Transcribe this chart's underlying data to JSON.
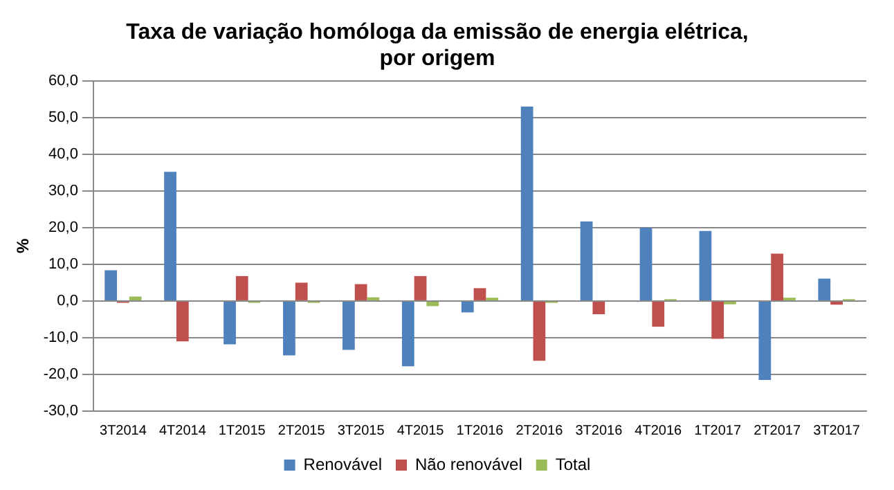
{
  "chart_data": {
    "type": "bar",
    "title": "Taxa de variação homóloga da emissão de energia elétrica, por origem",
    "ylabel": "%",
    "categories": [
      "3T2014",
      "4T2014",
      "1T2015",
      "2T2015",
      "3T2015",
      "4T2015",
      "1T2016",
      "2T2016",
      "3T2016",
      "4T2016",
      "1T2017",
      "2T2017",
      "3T2017"
    ],
    "series": [
      {
        "name": "Renovável",
        "color": "#4f81bd",
        "values": [
          8.4,
          35.2,
          -11.8,
          -14.8,
          -13.3,
          -17.8,
          -3.1,
          53.0,
          21.7,
          20.0,
          19.1,
          -21.5,
          6.1
        ]
      },
      {
        "name": "Não renovável",
        "color": "#c0504d",
        "values": [
          -0.5,
          -11.0,
          6.8,
          5.0,
          4.6,
          6.8,
          3.5,
          -16.3,
          -3.6,
          -7.0,
          -10.3,
          12.9,
          -1.0
        ]
      },
      {
        "name": "Total",
        "color": "#9bbb59",
        "values": [
          1.2,
          0.0,
          -0.5,
          -0.5,
          1.0,
          -1.4,
          0.9,
          -0.5,
          0.0,
          0.5,
          -0.9,
          0.9,
          0.5
        ]
      }
    ],
    "ylim": [
      -30,
      60
    ],
    "yticks": [
      {
        "value": -30,
        "label": "-30,0"
      },
      {
        "value": -20,
        "label": "-20,0"
      },
      {
        "value": -10,
        "label": "-10,0"
      },
      {
        "value": 0,
        "label": "0,0"
      },
      {
        "value": 10,
        "label": "10,0"
      },
      {
        "value": 20,
        "label": "20,0"
      },
      {
        "value": 30,
        "label": "30,0"
      },
      {
        "value": 40,
        "label": "40,0"
      },
      {
        "value": 50,
        "label": "50,0"
      },
      {
        "value": 60,
        "label": "60,0"
      }
    ],
    "grid": "y",
    "legend": "bottom"
  }
}
